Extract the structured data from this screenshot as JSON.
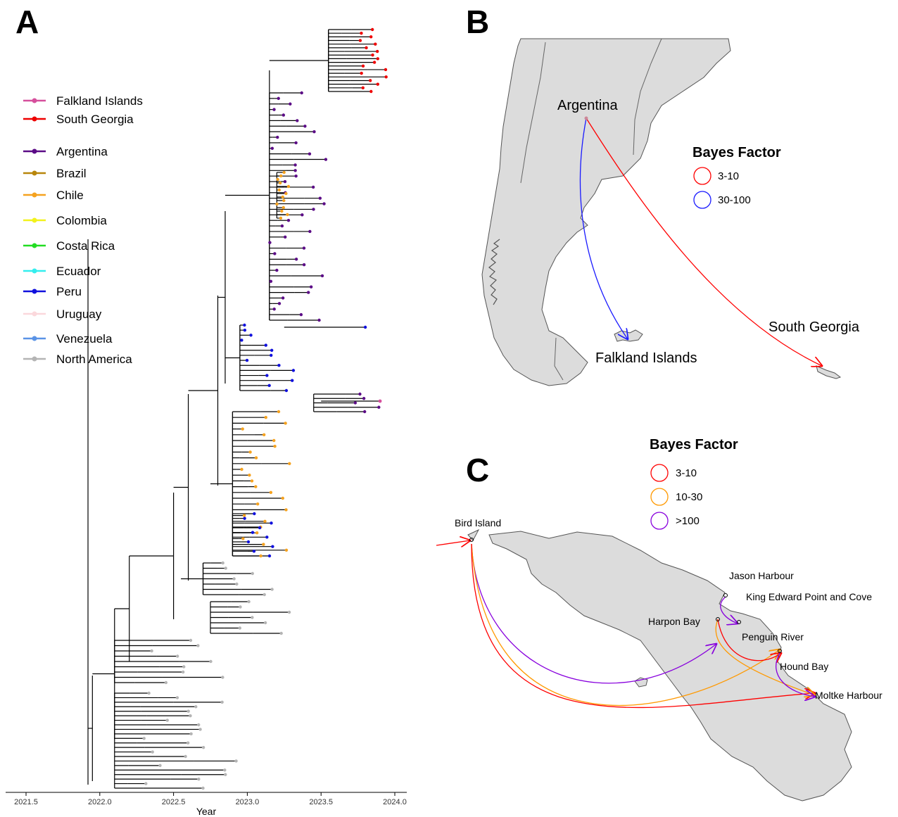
{
  "panels": {
    "a_label": "A",
    "b_label": "B",
    "c_label": "C"
  },
  "chart_data": [
    {
      "type": "tree",
      "xlabel": "Year",
      "xlim": [
        2021.5,
        2024.0
      ],
      "ticks": [
        "2021.5",
        "2022.0",
        "2022.5",
        "2023.0",
        "2023.5",
        "2024.0"
      ],
      "tick_values": [
        2021.5,
        2022.0,
        2022.5,
        2023.0,
        2023.5,
        2024.0
      ],
      "legend": [
        {
          "name": "Falkland Islands",
          "color": "#d64f9c"
        },
        {
          "name": "South Georgia",
          "color": "#ee0000"
        },
        {
          "name": "Argentina",
          "color": "#5b0b86"
        },
        {
          "name": "Brazil",
          "color": "#b8860b"
        },
        {
          "name": "Chile",
          "color": "#f5a21f"
        },
        {
          "name": "Colombia",
          "color": "#f2f21c"
        },
        {
          "name": "Costa Rica",
          "color": "#22dd22"
        },
        {
          "name": "Ecuador",
          "color": "#33eeee"
        },
        {
          "name": "Peru",
          "color": "#1010dd"
        },
        {
          "name": "Uruguay",
          "color": "#fbd8dc"
        },
        {
          "name": "Venezuela",
          "color": "#5a93e6"
        },
        {
          "name": "North America",
          "color": "#b4b4b4"
        }
      ]
    },
    {
      "type": "map",
      "labels": {
        "argentina": "Argentina",
        "falklands": "Falkland Islands",
        "south_georgia": "South Georgia"
      },
      "legend_title": "Bayes Factor",
      "legend": [
        {
          "label": "3-10",
          "color": "#ff0000"
        },
        {
          "label": "30-100",
          "color": "#1a1aff"
        }
      ],
      "transitions": [
        {
          "from": "Argentina",
          "to": "Falkland Islands",
          "bayes_factor": "30-100"
        },
        {
          "from": "Argentina",
          "to": "South Georgia",
          "bayes_factor": "3-10"
        }
      ]
    },
    {
      "type": "map",
      "legend_title": "Bayes Factor",
      "legend": [
        {
          "label": "3-10",
          "color": "#ff0000"
        },
        {
          "label": "10-30",
          "color": "#ff9900"
        },
        {
          "label": ">100",
          "color": "#8800dd"
        }
      ],
      "places": {
        "bird_island": "Bird Island",
        "jason_harbour": "Jason Harbour",
        "kep": "King Edward Point and Cove",
        "harpon_bay": "Harpon Bay",
        "penguin_river": "Penguin River",
        "hound_bay": "Hound Bay",
        "moltke_harbour": "Moltke Harbour"
      }
    }
  ]
}
